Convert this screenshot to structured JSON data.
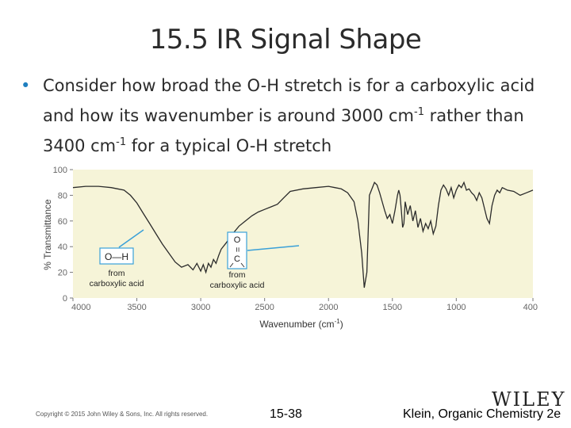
{
  "slide": {
    "title": "15.5 IR Signal Shape",
    "bullet_text_1": "Consider how broad the O-H stretch is for a carboxylic acid and how its wavenumber is around 3000 cm",
    "bullet_sup_1": "-1",
    "bullet_text_2": " rather than 3400 cm",
    "bullet_sup_2": "-1",
    "bullet_text_3": " for a typical O-H stretch",
    "copyright": "Copyright © 2015 John Wiley & Sons, Inc. All rights reserved.",
    "slide_number": "15-38",
    "credit": "Klein, Organic Chemistry 2e",
    "logo": "WILEY"
  },
  "chart_data": {
    "type": "line",
    "xlabel": "Wavenumber (cm",
    "xlabel_sup": "-1",
    "xlabel_close": ")",
    "ylabel": "% Transmittance",
    "xlim": [
      4000,
      400
    ],
    "ylim": [
      0,
      100
    ],
    "x_ticks": [
      "4000",
      "3500",
      "3000",
      "2500",
      "2000",
      "1500",
      "1000",
      "400"
    ],
    "y_ticks": [
      "0",
      "20",
      "40",
      "60",
      "80",
      "100"
    ],
    "colors": {
      "plot_bg": "#f6f4d8",
      "line": "#2b2b2b",
      "callout": "#3aa0d8"
    },
    "annotations": [
      {
        "label": "O—H",
        "caption_1": "from",
        "caption_2": "carboxylic acid"
      },
      {
        "label_top": "O",
        "label_mid": "=",
        "label_bottom": "C",
        "caption_1": "from",
        "caption_2": "carboxylic acid"
      }
    ],
    "series": [
      {
        "x": [
          4000,
          3900,
          3800,
          3700,
          3650,
          3600,
          3550,
          3500,
          3450,
          3400,
          3350,
          3300,
          3250,
          3200,
          3150,
          3100,
          3060,
          3030,
          3000,
          2980,
          2960,
          2940,
          2920,
          2900,
          2880,
          2860,
          2840,
          2800,
          2750,
          2700,
          2650,
          2600,
          2550,
          2500,
          2450,
          2400,
          2350,
          2300,
          2200,
          2100,
          2000,
          1950,
          1900,
          1850,
          1800,
          1770,
          1740,
          1720,
          1700,
          1690,
          1680,
          1660,
          1640,
          1620,
          1600,
          1580,
          1560,
          1540,
          1520,
          1500,
          1480,
          1460,
          1450,
          1440,
          1430,
          1420,
          1410,
          1400,
          1380,
          1360,
          1340,
          1320,
          1300,
          1280,
          1260,
          1240,
          1220,
          1200,
          1180,
          1160,
          1140,
          1120,
          1100,
          1080,
          1060,
          1040,
          1020,
          1000,
          980,
          960,
          940,
          920,
          900,
          880,
          860,
          840,
          820,
          800,
          780,
          760,
          740,
          720,
          700,
          680,
          660,
          640,
          600,
          550,
          500,
          450,
          400
        ],
        "values": [
          86,
          87,
          87,
          86,
          85,
          84,
          80,
          74,
          66,
          58,
          50,
          42,
          35,
          28,
          24,
          26,
          22,
          27,
          21,
          26,
          20,
          27,
          24,
          30,
          27,
          33,
          38,
          43,
          50,
          56,
          60,
          64,
          67,
          69,
          71,
          73,
          78,
          83,
          85,
          86,
          87,
          86,
          85,
          82,
          75,
          60,
          35,
          8,
          20,
          50,
          80,
          85,
          90,
          88,
          82,
          75,
          68,
          62,
          65,
          58,
          68,
          80,
          84,
          80,
          68,
          55,
          58,
          75,
          65,
          72,
          60,
          68,
          55,
          62,
          52,
          58,
          54,
          60,
          50,
          56,
          72,
          84,
          88,
          85,
          80,
          86,
          78,
          84,
          88,
          86,
          90,
          84,
          85,
          82,
          80,
          76,
          82,
          78,
          70,
          62,
          58,
          72,
          80,
          84,
          82,
          86,
          84,
          83,
          80,
          82,
          84
        ]
      }
    ]
  }
}
